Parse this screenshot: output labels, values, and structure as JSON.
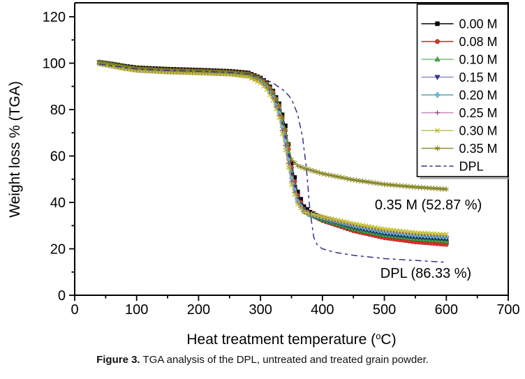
{
  "figure": {
    "caption_prefix": "Figure 3.",
    "caption_text": " TGA analysis of the DPL, untreated and treated grain powder."
  },
  "chart_data": {
    "type": "line",
    "title": "",
    "xlabel": "Heat treatment temperature (°C)",
    "xlabel_parts": {
      "base": "Heat treatment temperature (",
      "sup": "o",
      "end": "C)"
    },
    "ylabel": "Weight loss % (TGA)",
    "xlim": [
      0,
      700
    ],
    "ylim": [
      0,
      126
    ],
    "x_ticks": [
      0,
      100,
      200,
      300,
      400,
      500,
      600,
      700
    ],
    "y_ticks": [
      0,
      20,
      40,
      60,
      80,
      100,
      120
    ],
    "x_minor_step": 50,
    "y_minor_step": 10,
    "grid": false,
    "legend_position": "top-right",
    "marker_step": 5,
    "axis_color": "#000000",
    "annotations": [
      {
        "text": "0.35 M (52.87 %)",
        "x": 571,
        "y": 37.0
      },
      {
        "text": "DPL (86.33 %)",
        "x": 567,
        "y": 7.5
      }
    ],
    "series": [
      {
        "name": "0.00 M",
        "marker": "square",
        "marker_color": "#000000",
        "line_color": "#000000",
        "dashed": false,
        "x": [
          40,
          60,
          80,
          100,
          150,
          200,
          250,
          280,
          300,
          310,
          320,
          330,
          340,
          350,
          360,
          370,
          380,
          400,
          450,
          500,
          550,
          600
        ],
        "y": [
          100.3,
          99.6,
          98.7,
          98.0,
          97.4,
          97.0,
          96.5,
          95.8,
          93.6,
          91.6,
          88.0,
          82.5,
          73.0,
          57.0,
          44.5,
          38.2,
          35.8,
          33.2,
          29.0,
          26.0,
          24.2,
          23.2
        ]
      },
      {
        "name": "0.08 M",
        "marker": "circle",
        "marker_color": "#e3302a",
        "line_color": "#a33535",
        "dashed": false,
        "x": [
          40,
          60,
          80,
          100,
          150,
          200,
          250,
          280,
          300,
          310,
          320,
          330,
          340,
          350,
          360,
          370,
          380,
          400,
          450,
          500,
          550,
          600
        ],
        "y": [
          100.1,
          99.3,
          98.4,
          97.7,
          97.1,
          96.7,
          96.2,
          95.5,
          93.3,
          91.2,
          87.4,
          81.5,
          71.0,
          55.0,
          43.0,
          37.2,
          35.0,
          32.2,
          27.8,
          24.8,
          23.0,
          21.9
        ]
      },
      {
        "name": "0.10 M",
        "marker": "triangle-up",
        "marker_color": "#3fae4c",
        "line_color": "#79bb79",
        "dashed": false,
        "x": [
          40,
          60,
          80,
          100,
          150,
          200,
          250,
          280,
          300,
          310,
          320,
          330,
          340,
          350,
          360,
          370,
          380,
          400,
          450,
          500,
          550,
          600
        ],
        "y": [
          100.4,
          99.5,
          98.5,
          97.7,
          97.0,
          96.6,
          96.1,
          95.3,
          93.0,
          90.7,
          86.8,
          80.5,
          69.5,
          53.5,
          42.0,
          36.8,
          34.8,
          32.6,
          28.6,
          25.9,
          24.3,
          23.4
        ]
      },
      {
        "name": "0.15 M",
        "marker": "triangle-down",
        "marker_color": "#32329b",
        "line_color": "#8c8cc0",
        "dashed": false,
        "x": [
          40,
          60,
          80,
          100,
          150,
          200,
          250,
          280,
          300,
          310,
          320,
          330,
          340,
          350,
          360,
          370,
          380,
          400,
          450,
          500,
          550,
          600
        ],
        "y": [
          100.2,
          99.4,
          98.3,
          97.5,
          96.8,
          96.4,
          95.9,
          95.1,
          92.7,
          90.2,
          86.1,
          79.5,
          68.0,
          52.0,
          41.2,
          36.4,
          34.8,
          33.0,
          29.3,
          26.6,
          25.1,
          24.3
        ]
      },
      {
        "name": "0.20 M",
        "marker": "diamond",
        "marker_color": "#59c6dd",
        "line_color": "#5fa3a8",
        "dashed": false,
        "x": [
          40,
          60,
          80,
          100,
          150,
          200,
          250,
          280,
          300,
          310,
          320,
          330,
          340,
          350,
          360,
          370,
          380,
          400,
          450,
          500,
          550,
          600
        ],
        "y": [
          99.9,
          99.0,
          98.0,
          97.2,
          96.5,
          96.1,
          95.6,
          94.8,
          92.3,
          89.7,
          85.4,
          78.5,
          66.5,
          50.5,
          40.5,
          36.2,
          34.9,
          33.3,
          29.9,
          27.3,
          25.8,
          25.0
        ]
      },
      {
        "name": "0.25 M",
        "marker": "plus",
        "marker_color": "#8e4a96",
        "line_color": "#c987bd",
        "dashed": false,
        "x": [
          40,
          60,
          80,
          100,
          150,
          200,
          250,
          280,
          300,
          310,
          320,
          330,
          340,
          350,
          360,
          370,
          380,
          400,
          450,
          500,
          550,
          600
        ],
        "y": [
          99.8,
          98.9,
          97.8,
          97.0,
          96.3,
          95.9,
          95.4,
          94.5,
          91.9,
          89.2,
          84.7,
          77.5,
          64.5,
          49.0,
          39.8,
          36.0,
          35.0,
          33.5,
          30.3,
          27.9,
          26.4,
          25.6
        ]
      },
      {
        "name": "0.30 M",
        "marker": "x",
        "marker_color": "#c2c21d",
        "line_color": "#bdbd5a",
        "dashed": false,
        "x": [
          40,
          60,
          80,
          100,
          150,
          200,
          250,
          280,
          300,
          310,
          320,
          330,
          340,
          350,
          360,
          370,
          380,
          400,
          450,
          500,
          550,
          600
        ],
        "y": [
          99.7,
          98.7,
          97.6,
          96.8,
          96.1,
          95.7,
          95.2,
          94.2,
          91.4,
          88.6,
          84.0,
          76.5,
          62.5,
          47.5,
          39.2,
          35.8,
          35.2,
          33.8,
          30.9,
          28.5,
          27.0,
          26.2
        ]
      },
      {
        "name": "0.35 M",
        "marker": "asterisk",
        "marker_color": "#82821f",
        "line_color": "#8f8f33",
        "dashed": false,
        "x": [
          40,
          60,
          80,
          100,
          150,
          200,
          250,
          280,
          300,
          310,
          320,
          330,
          340,
          350,
          360,
          370,
          380,
          400,
          450,
          500,
          550,
          600
        ],
        "y": [
          100.5,
          99.6,
          98.6,
          97.8,
          97.1,
          96.7,
          96.2,
          95.4,
          93.4,
          91.0,
          87.6,
          82.0,
          71.5,
          58.5,
          55.8,
          54.8,
          54.0,
          52.4,
          49.7,
          47.8,
          46.6,
          45.7
        ]
      },
      {
        "name": "DPL",
        "marker": "none",
        "marker_color": "#31318c",
        "line_color": "#31318c",
        "dashed": true,
        "x": [
          40,
          60,
          80,
          100,
          150,
          200,
          250,
          280,
          300,
          320,
          340,
          350,
          360,
          368,
          374,
          380,
          386,
          392,
          400,
          420,
          450,
          500,
          550,
          600
        ],
        "y": [
          99.6,
          98.9,
          98.1,
          97.5,
          96.9,
          96.5,
          96.0,
          95.3,
          93.8,
          91.5,
          87.8,
          84.5,
          78.0,
          68.0,
          55.0,
          36.0,
          25.0,
          21.5,
          20.0,
          18.5,
          17.2,
          15.8,
          15.0,
          14.2
        ]
      }
    ]
  }
}
